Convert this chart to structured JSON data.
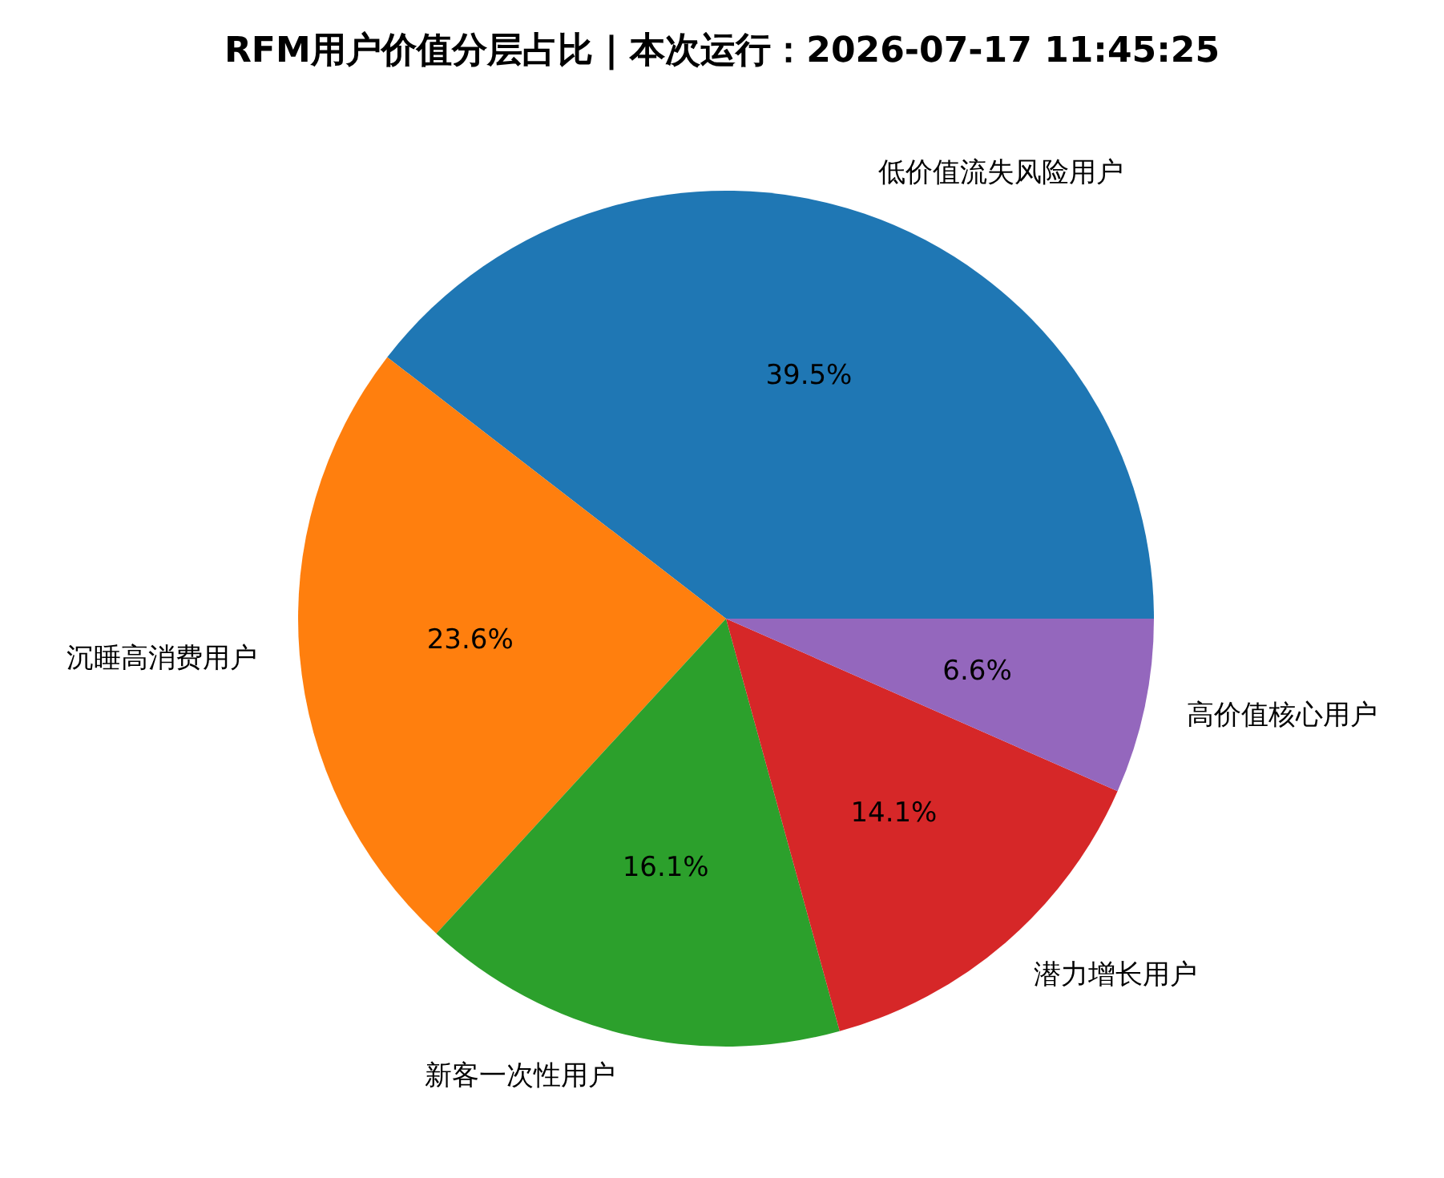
{
  "chart_data": {
    "type": "pie",
    "title": "RFM用户价值分层占比 | 本次运行：2026-07-17 11:45:25",
    "categories": [
      "低价值流失风险用户",
      "沉睡高消费用户",
      "新客一次性用户",
      "潜力增长用户",
      "高价值核心用户"
    ],
    "values": [
      39.5,
      23.6,
      16.1,
      14.1,
      6.6
    ],
    "value_labels": [
      "39.5%",
      "23.6%",
      "16.1%",
      "14.1%",
      "6.6%"
    ],
    "colors": [
      "#1f77b4",
      "#ff7f0e",
      "#2ca02c",
      "#d62728",
      "#9467bd"
    ]
  }
}
